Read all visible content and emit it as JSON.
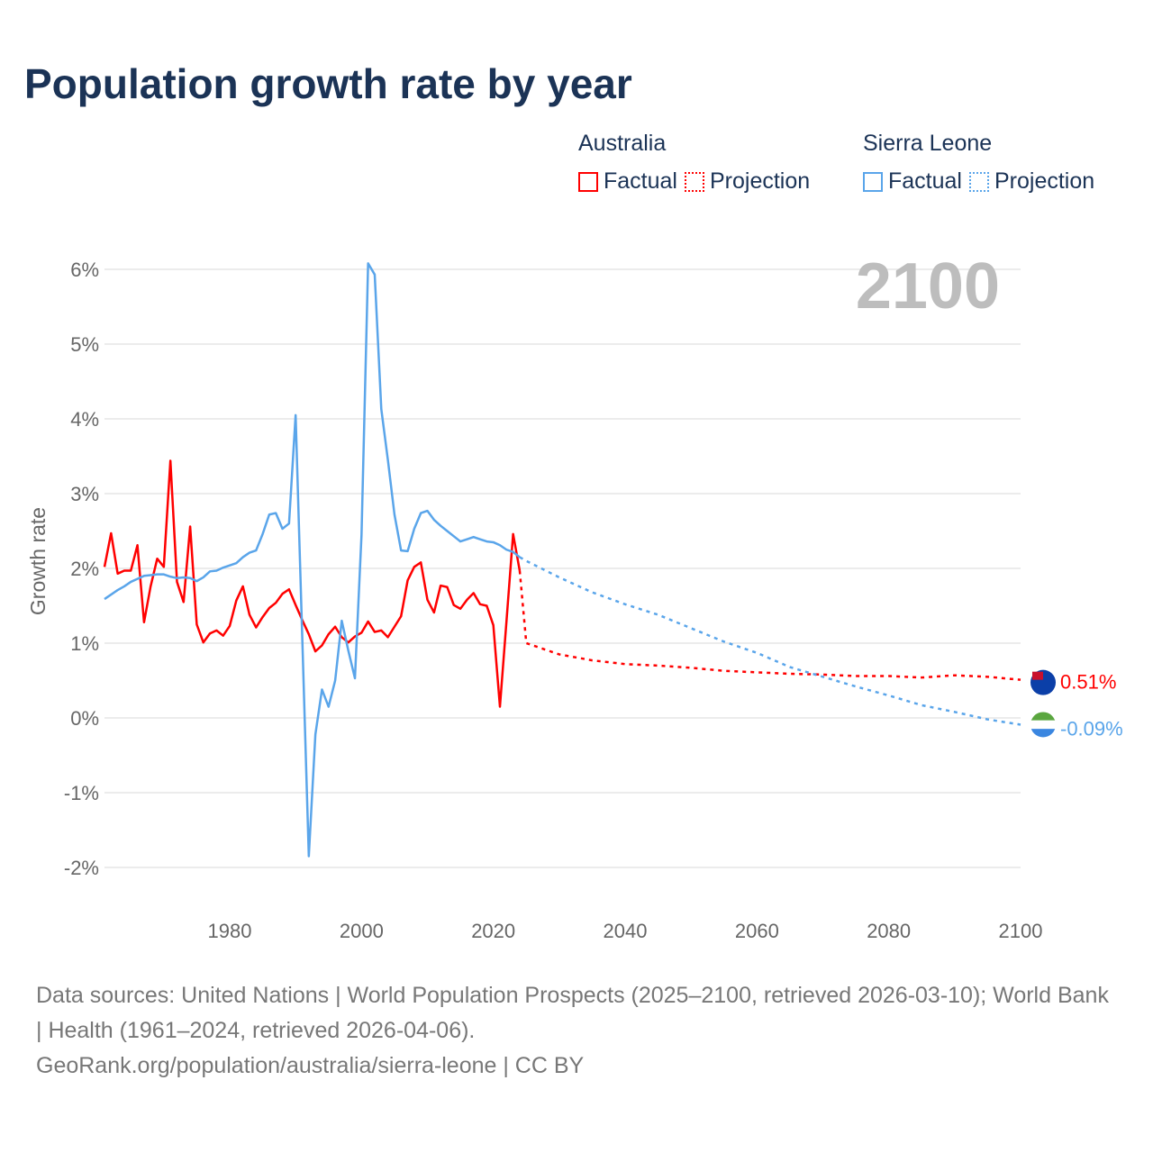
{
  "chart_data": {
    "type": "line",
    "title": "Population growth rate by year",
    "ylabel": "Growth rate",
    "xlabel": "",
    "xlim": [
      1961,
      2100
    ],
    "ylim": [
      -2.4,
      6.2
    ],
    "x_ticks": [
      1980,
      2000,
      2020,
      2040,
      2060,
      2080,
      2100
    ],
    "x_tick_labels": [
      "1980",
      "2000",
      "2020",
      "2040",
      "2060",
      "2080",
      "2100"
    ],
    "y_ticks": [
      -2,
      -1,
      0,
      1,
      2,
      3,
      4,
      5,
      6
    ],
    "y_tick_labels": [
      "-2%",
      "-1%",
      "0%",
      "1%",
      "2%",
      "3%",
      "4%",
      "5%",
      "6%"
    ],
    "grid": true,
    "year_label": "2100",
    "legend": {
      "placement": "top-right",
      "groups": [
        {
          "country": "Australia",
          "factual": "Factual",
          "projection": "Projection"
        },
        {
          "country": "Sierra Leone",
          "factual": "Factual",
          "projection": "Projection"
        }
      ]
    },
    "series": [
      {
        "name": "Australia",
        "color": "#ff0000",
        "end_label": "0.51%",
        "factual": {
          "x": [
            1961,
            1962,
            1963,
            1964,
            1965,
            1966,
            1967,
            1968,
            1969,
            1970,
            1971,
            1972,
            1973,
            1974,
            1975,
            1976,
            1977,
            1978,
            1979,
            1980,
            1981,
            1982,
            1983,
            1984,
            1985,
            1986,
            1987,
            1988,
            1989,
            1990,
            1991,
            1992,
            1993,
            1994,
            1995,
            1996,
            1997,
            1998,
            1999,
            2000,
            2001,
            2002,
            2003,
            2004,
            2005,
            2006,
            2007,
            2008,
            2009,
            2010,
            2011,
            2012,
            2013,
            2014,
            2015,
            2016,
            2017,
            2018,
            2019,
            2020,
            2021,
            2022,
            2023,
            2024
          ],
          "y": [
            2.02,
            2.47,
            1.93,
            1.97,
            1.97,
            2.31,
            1.28,
            1.76,
            2.13,
            2.02,
            3.44,
            1.82,
            1.55,
            2.56,
            1.25,
            1.01,
            1.13,
            1.17,
            1.1,
            1.23,
            1.57,
            1.76,
            1.38,
            1.21,
            1.35,
            1.47,
            1.54,
            1.66,
            1.72,
            1.51,
            1.31,
            1.12,
            0.89,
            0.97,
            1.12,
            1.22,
            1.08,
            1.01,
            1.09,
            1.14,
            1.29,
            1.15,
            1.17,
            1.08,
            1.22,
            1.36,
            1.84,
            2.02,
            2.08,
            1.58,
            1.41,
            1.77,
            1.75,
            1.51,
            1.46,
            1.58,
            1.67,
            1.52,
            1.5,
            1.24,
            0.15,
            1.3,
            2.46,
            1.97
          ]
        },
        "projection": {
          "x": [
            2024,
            2025,
            2030,
            2035,
            2040,
            2045,
            2050,
            2055,
            2060,
            2065,
            2070,
            2075,
            2080,
            2085,
            2090,
            2095,
            2100
          ],
          "y": [
            1.97,
            1.0,
            0.85,
            0.77,
            0.72,
            0.7,
            0.67,
            0.63,
            0.61,
            0.59,
            0.58,
            0.56,
            0.56,
            0.54,
            0.57,
            0.55,
            0.51
          ]
        }
      },
      {
        "name": "Sierra Leone",
        "color": "#5aa5ea",
        "end_label": "-0.09%",
        "factual": {
          "x": [
            1961,
            1962,
            1963,
            1964,
            1965,
            1966,
            1967,
            1968,
            1969,
            1970,
            1971,
            1972,
            1973,
            1974,
            1975,
            1976,
            1977,
            1978,
            1979,
            1980,
            1981,
            1982,
            1983,
            1984,
            1985,
            1986,
            1987,
            1988,
            1989,
            1990,
            1991,
            1992,
            1993,
            1994,
            1995,
            1996,
            1997,
            1998,
            1999,
            2000,
            2001,
            2002,
            2003,
            2004,
            2005,
            2006,
            2007,
            2008,
            2009,
            2010,
            2011,
            2012,
            2013,
            2014,
            2015,
            2016,
            2017,
            2018,
            2019,
            2020,
            2021,
            2022,
            2023,
            2024
          ],
          "y": [
            1.59,
            1.65,
            1.71,
            1.76,
            1.82,
            1.86,
            1.9,
            1.91,
            1.92,
            1.92,
            1.89,
            1.87,
            1.88,
            1.87,
            1.83,
            1.88,
            1.96,
            1.97,
            2.01,
            2.04,
            2.07,
            2.15,
            2.21,
            2.24,
            2.46,
            2.72,
            2.74,
            2.53,
            2.6,
            4.05,
            1.1,
            -1.85,
            -0.22,
            0.38,
            0.15,
            0.5,
            1.3,
            0.9,
            0.53,
            2.45,
            6.08,
            5.93,
            4.13,
            3.45,
            2.72,
            2.24,
            2.23,
            2.53,
            2.74,
            2.77,
            2.65,
            2.57,
            2.5,
            2.43,
            2.36,
            2.39,
            2.42,
            2.39,
            2.36,
            2.35,
            2.31,
            2.25,
            2.22,
            2.15
          ]
        },
        "projection": {
          "x": [
            2024,
            2025,
            2030,
            2035,
            2040,
            2045,
            2050,
            2055,
            2060,
            2065,
            2070,
            2075,
            2080,
            2085,
            2090,
            2095,
            2100
          ],
          "y": [
            2.15,
            2.1,
            1.88,
            1.68,
            1.52,
            1.38,
            1.2,
            1.02,
            0.87,
            0.68,
            0.55,
            0.42,
            0.3,
            0.17,
            0.08,
            -0.02,
            -0.09
          ]
        }
      }
    ]
  },
  "footer": {
    "sources": "Data sources: United Nations | World Population Prospects (2025–2100, retrieved 2026-03-10); World Bank | Health (1961–2024, retrieved 2026-04-06).",
    "credit": "GeoRank.org/population/australia/sierra-leone | CC BY"
  }
}
